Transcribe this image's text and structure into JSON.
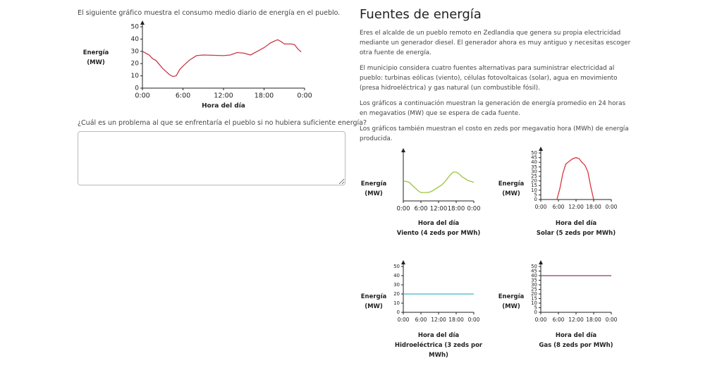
{
  "left": {
    "intro": "El siguiente gráfico muestra el consumo medio diario de energía en el pueblo.",
    "question": "¿Cuál es un problema al que se enfrentaría el pueblo si no hubiera suficiente energía?"
  },
  "right": {
    "heading": "Fuentes de energía",
    "paragraphs": [
      "Eres el alcalde de un pueblo remoto en Zedlandia que genera su propia electricidad mediante un generador diesel. El generador ahora es muy antiguo y necesitas escoger otra fuente de energía.",
      "El municipio considera cuatro fuentes alternativas para suministrar electricidad al pueblo: turbinas eólicas (viento), células fotovoltaicas (solar), agua en movimiento (presa hidroeléctrica) y gas natural (un combustible fósil).",
      "Los gráficos a continuación muestran la generación de energía promedio en 24 horas en megavatios (MW) que se espera de cada fuente.",
      "Los gráficos también muestran el costo en zeds por megavatio hora (MWh) de energía producida."
    ]
  },
  "chart_data": [
    {
      "type": "line",
      "y_label": "Energía (MW)",
      "x_label": "Hora del día",
      "color": "#c8374a",
      "x": [
        0,
        1,
        1.5,
        2,
        3,
        4,
        4.5,
        5,
        5.5,
        6,
        7,
        8,
        9,
        12,
        13,
        14,
        15,
        16,
        17,
        18,
        19,
        20,
        20.5,
        21,
        22,
        22.5,
        23,
        23.5
      ],
      "values": [
        30,
        27,
        24,
        22.5,
        16,
        11,
        9.5,
        10,
        15,
        18,
        23,
        26.5,
        27,
        26.5,
        27,
        29,
        28.5,
        27,
        30,
        33,
        37,
        39.5,
        38,
        36,
        36,
        35.5,
        32,
        29.5
      ],
      "xlim": [
        0,
        24
      ],
      "xticks": [
        {
          "value": 0,
          "label": "0:00"
        },
        {
          "value": 6,
          "label": "6:00"
        },
        {
          "value": 12,
          "label": "12:00"
        },
        {
          "value": 18,
          "label": "18:00"
        },
        {
          "value": 24,
          "label": "0:00"
        }
      ],
      "ylim": [
        0,
        50
      ],
      "yticks": [
        0,
        10,
        20,
        30,
        40,
        50
      ]
    },
    {
      "type": "line",
      "y_label": "Energía (MW)",
      "x_label": "Hora del día",
      "title": "Viento (4 zeds por MWh)",
      "color": "#9bc53d",
      "x": [
        0,
        1,
        2,
        3,
        4,
        5,
        6,
        7,
        8,
        9,
        10,
        11,
        12,
        13,
        14,
        15,
        16,
        17,
        18,
        19,
        20,
        21,
        22,
        23,
        24
      ],
      "values": [
        21,
        21,
        20,
        17,
        14,
        11,
        9,
        9,
        9,
        9.5,
        11,
        13,
        15,
        17,
        20,
        24,
        28,
        31,
        31,
        29,
        26,
        24,
        22,
        21,
        20
      ],
      "xlim": [
        0,
        24
      ],
      "xticks": [
        {
          "value": 0,
          "label": "0:00"
        },
        {
          "value": 6,
          "label": "6:00"
        },
        {
          "value": 12,
          "label": "12:00"
        },
        {
          "value": 18,
          "label": "18:00"
        },
        {
          "value": 24,
          "label": "0:00"
        }
      ],
      "ylim": [
        0,
        50
      ]
    },
    {
      "type": "line",
      "y_label": "Energía (MW)",
      "x_label": "Hora del día",
      "title": "Solar (5 zeds por MWh)",
      "color": "#d9363e",
      "x": [
        5.5,
        6.5,
        7.5,
        8.5,
        10,
        11,
        12,
        13,
        14,
        15,
        16,
        17,
        18
      ],
      "values": [
        0,
        12,
        28,
        38,
        42,
        44,
        45,
        44,
        40,
        37,
        30,
        14,
        0
      ],
      "xlim": [
        0,
        24
      ],
      "xticks": [
        {
          "value": 0,
          "label": "0:00"
        },
        {
          "value": 6,
          "label": "6:00"
        },
        {
          "value": 12,
          "label": "12:00"
        },
        {
          "value": 18,
          "label": "18:00"
        },
        {
          "value": 24,
          "label": "0:00"
        }
      ],
      "ylim": [
        0,
        50
      ],
      "yticks": [
        0,
        5,
        10,
        15,
        20,
        25,
        30,
        35,
        40,
        45,
        50
      ]
    },
    {
      "type": "line",
      "y_label": "Energía (MW)",
      "x_label": "Hora del día",
      "title": "Hidroeléctrica (3 zeds por MWh)",
      "color": "#3fb8c8",
      "x": [
        0,
        24
      ],
      "values": [
        20,
        20
      ],
      "xlim": [
        0,
        24
      ],
      "xticks": [
        {
          "value": 0,
          "label": "0:00"
        },
        {
          "value": 6,
          "label": "6:00"
        },
        {
          "value": 12,
          "label": "12:00"
        },
        {
          "value": 18,
          "label": "18:00"
        },
        {
          "value": 24,
          "label": "0:00"
        }
      ],
      "ylim": [
        0,
        50
      ],
      "yticks": [
        0,
        10,
        20,
        30,
        40,
        50
      ]
    },
    {
      "type": "line",
      "y_label": "Energía (MW)",
      "x_label": "Hora del día",
      "title": "Gas (8 zeds por MWh)",
      "color": "#8e3a6e",
      "x": [
        0,
        24
      ],
      "values": [
        40,
        40
      ],
      "xlim": [
        0,
        24
      ],
      "xticks": [
        {
          "value": 0,
          "label": "0:00"
        },
        {
          "value": 6,
          "label": "6:00"
        },
        {
          "value": 12,
          "label": "12:00"
        },
        {
          "value": 18,
          "label": "18:00"
        },
        {
          "value": 24,
          "label": "0:00"
        }
      ],
      "ylim": [
        0,
        50
      ],
      "yticks": [
        0,
        5,
        10,
        15,
        20,
        25,
        30,
        35,
        40,
        45,
        50
      ]
    }
  ]
}
